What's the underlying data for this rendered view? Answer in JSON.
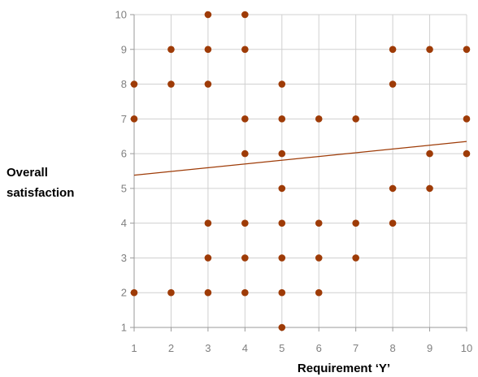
{
  "chart_data": {
    "type": "scatter",
    "title": "",
    "xlabel": "Requirement ‘Y’",
    "ylabel_lines": [
      "Overall",
      "satisfaction"
    ],
    "xlim": [
      1,
      10
    ],
    "ylim": [
      1,
      10
    ],
    "x_ticks": [
      1,
      2,
      3,
      4,
      5,
      6,
      7,
      8,
      9,
      10
    ],
    "y_ticks": [
      1,
      2,
      3,
      4,
      5,
      6,
      7,
      8,
      9,
      10
    ],
    "grid": true,
    "marker_color": "#9e3b07",
    "trendline": {
      "type": "linear",
      "start": [
        1,
        5.38
      ],
      "end": [
        10,
        6.35
      ],
      "color": "#9e3b07"
    },
    "points": [
      [
        1,
        8
      ],
      [
        1,
        7
      ],
      [
        1,
        2
      ],
      [
        2,
        9
      ],
      [
        2,
        8
      ],
      [
        2,
        2
      ],
      [
        3,
        10
      ],
      [
        3,
        9
      ],
      [
        3,
        8
      ],
      [
        3,
        4
      ],
      [
        3,
        3
      ],
      [
        3,
        2
      ],
      [
        4,
        10
      ],
      [
        4,
        9
      ],
      [
        4,
        7
      ],
      [
        4,
        6
      ],
      [
        4,
        4
      ],
      [
        4,
        3
      ],
      [
        4,
        2
      ],
      [
        5,
        8
      ],
      [
        5,
        7
      ],
      [
        5,
        6
      ],
      [
        5,
        5
      ],
      [
        5,
        4
      ],
      [
        5,
        3
      ],
      [
        5,
        2
      ],
      [
        5,
        1
      ],
      [
        6,
        7
      ],
      [
        6,
        4
      ],
      [
        6,
        3
      ],
      [
        6,
        2
      ],
      [
        7,
        7
      ],
      [
        7,
        4
      ],
      [
        7,
        3
      ],
      [
        8,
        9
      ],
      [
        8,
        8
      ],
      [
        8,
        5
      ],
      [
        8,
        4
      ],
      [
        9,
        9
      ],
      [
        9,
        6
      ],
      [
        9,
        5
      ],
      [
        10,
        9
      ],
      [
        10,
        7
      ],
      [
        10,
        6
      ]
    ]
  }
}
